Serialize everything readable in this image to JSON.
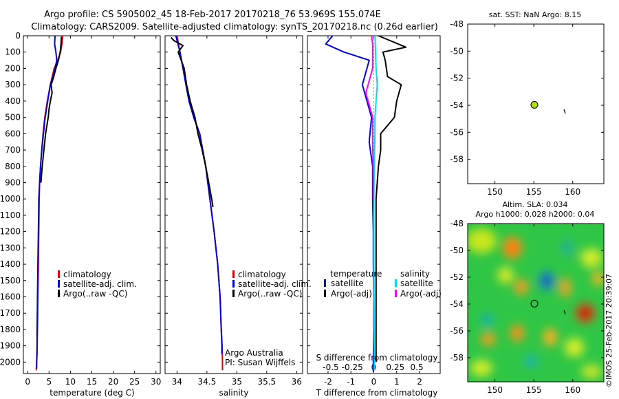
{
  "title": {
    "line1": "Argo profile: CS 5905002_45 18-Feb-2017 20170218_76 53.969S 155.074E",
    "line2": "Climatology: CARS2009. Satellite-adjusted climatology: synTS_20170218.nc (0.26d earlier)"
  },
  "colors": {
    "climatology": "#e00000",
    "satellite": "#0000e0",
    "argo": "#000000",
    "sal_satellite": "#00e0e0",
    "sal_argo": "#ff00ff",
    "dot": "#b4e000"
  },
  "legends": {
    "clim": "climatology",
    "sat": "satellite-adj. clim.",
    "argo": "Argo(..raw -QC)",
    "diff_temp_header": "temperature",
    "diff_sal_header": "salinity",
    "diff_sat": "satellite",
    "diff_argo": "Argo(-adj)"
  },
  "annotations": {
    "argo_australia": "Argo Australia",
    "pi": "PI: Susan Wijffels",
    "s_diff_label": "S difference from climatology",
    "imos_stamp": "©IMOS 25-Feb-2017 20:39:07"
  },
  "map1": {
    "title": "sat. SST: NaN Argo: 8.15"
  },
  "map2": {
    "title1": "Altim. SLA: 0.034",
    "title2": "Argo h1000: 0.028 h2000: 0.04"
  },
  "chart_data": [
    {
      "type": "line",
      "name": "temperature-profile",
      "xlabel": "temperature (deg C)",
      "ylabel": "",
      "xlim": [
        -1,
        31
      ],
      "ylim": [
        2070,
        0
      ],
      "xticks": [
        0,
        5,
        10,
        15,
        20,
        25,
        30
      ],
      "yticks": [
        0,
        100,
        200,
        300,
        400,
        500,
        600,
        700,
        800,
        900,
        1000,
        1100,
        1200,
        1300,
        1400,
        1500,
        1600,
        1700,
        1800,
        1900,
        2000
      ],
      "series": [
        {
          "name": "climatology",
          "x": [
            8.2,
            8.0,
            7.7,
            7.0,
            6.2,
            5.3,
            4.6,
            4.0,
            3.6,
            3.3,
            3.0,
            2.8,
            2.7,
            2.6,
            2.5,
            2.4,
            2.3,
            2.2,
            2.2,
            2.1,
            2.0
          ],
          "y": [
            0,
            50,
            100,
            150,
            200,
            300,
            400,
            500,
            600,
            700,
            800,
            900,
            1000,
            1200,
            1400,
            1600,
            1800,
            1900,
            1950,
            2000,
            2050
          ]
        },
        {
          "name": "satellite-adj. clim.",
          "x": [
            6.4,
            6.3,
            6.6,
            6.8,
            6.4,
            5.9,
            5.3,
            4.7,
            4.1,
            3.7,
            3.3,
            3.0,
            2.8,
            2.6,
            2.5,
            2.4,
            2.3,
            2.2,
            2.2,
            2.1,
            2.1
          ],
          "y": [
            0,
            50,
            100,
            150,
            200,
            250,
            300,
            400,
            500,
            600,
            700,
            800,
            900,
            1000,
            1200,
            1400,
            1600,
            1800,
            1900,
            2000,
            2040
          ]
        },
        {
          "name": "Argo(..raw -QC)",
          "x": [
            7.9,
            7.8,
            7.6,
            7.2,
            6.6,
            6.1,
            5.5,
            5.7,
            5.3,
            5.0,
            4.8,
            4.2,
            3.8,
            3.4,
            3.1
          ],
          "y": [
            5,
            50,
            100,
            150,
            200,
            250,
            300,
            350,
            400,
            450,
            500,
            600,
            700,
            800,
            900
          ]
        }
      ],
      "legend": [
        "climatology",
        "satellite-adj. clim.",
        "Argo(..raw -QC)"
      ]
    },
    {
      "type": "line",
      "name": "salinity-profile",
      "xlabel": "salinity",
      "ylabel": "",
      "xlim": [
        33.8,
        36.1
      ],
      "ylim": [
        2070,
        0
      ],
      "xticks": [
        34,
        34.5,
        35,
        35.5,
        36
      ],
      "series": [
        {
          "name": "climatology",
          "x": [
            34.0,
            34.05,
            34.1,
            34.15,
            34.2,
            34.28,
            34.38,
            34.48,
            34.55,
            34.62,
            34.68,
            34.72,
            34.74,
            34.755,
            34.76,
            34.76
          ],
          "y": [
            0,
            100,
            200,
            300,
            400,
            500,
            600,
            800,
            1000,
            1200,
            1400,
            1600,
            1800,
            1900,
            2000,
            2050
          ]
        },
        {
          "name": "satellite-adj. clim.",
          "x": [
            33.98,
            34.05,
            34.1,
            34.15,
            34.2,
            34.28,
            34.38,
            34.48,
            34.55,
            34.62,
            34.68,
            34.72,
            34.74,
            34.75,
            34.75
          ],
          "y": [
            0,
            100,
            200,
            300,
            400,
            500,
            600,
            800,
            1000,
            1200,
            1400,
            1600,
            1800,
            1900,
            1950
          ]
        },
        {
          "name": "Argo(..raw -QC)",
          "x": [
            33.9,
            33.95,
            34.1,
            34.02,
            34.12,
            34.16,
            34.22,
            34.3,
            34.35,
            34.42,
            34.48,
            34.53,
            34.58,
            34.6
          ],
          "y": [
            10,
            30,
            60,
            100,
            200,
            300,
            400,
            500,
            600,
            700,
            800,
            900,
            1000,
            1050
          ]
        }
      ],
      "legend": [
        "climatology",
        "satellite-adj. clim.",
        "Argo(..raw -QC)"
      ]
    },
    {
      "type": "line",
      "name": "difference-profile",
      "xlabel": "T difference from climatology",
      "ylabel": "",
      "xlim": [
        -2.9,
        2.9
      ],
      "ylim": [
        2070,
        0
      ],
      "xticks": [
        -2,
        -1,
        0,
        1,
        2
      ],
      "top_xticks": [
        -0.5,
        -0.25,
        0,
        0.25,
        0.5
      ],
      "series": [
        {
          "name": "temperature satellite",
          "x": [
            -1.8,
            -2.1,
            -1.3,
            -0.2,
            -0.5,
            -0.1,
            -0.2,
            -0.05,
            -0.05,
            -0.02,
            -0.02,
            0.0,
            0.0,
            -0.02,
            -0.02
          ],
          "y": [
            0,
            50,
            100,
            150,
            300,
            500,
            650,
            800,
            1000,
            1200,
            1400,
            1600,
            1800,
            2000,
            2060
          ]
        },
        {
          "name": "temperature Argo(-adj)",
          "x": [
            0.2,
            1.4,
            0.4,
            0.5,
            0.6,
            1.2,
            1.0,
            0.9,
            0.3,
            0.3,
            0.2,
            0.15,
            0.1,
            0.1,
            0.1
          ],
          "y": [
            0,
            70,
            100,
            150,
            250,
            300,
            400,
            500,
            600,
            700,
            800,
            900,
            1000,
            1100,
            2000
          ]
        },
        {
          "name": "salinity satellite",
          "x": [
            0.05,
            0.1,
            0.15,
            0.1,
            0.05,
            0.05,
            0.02,
            0.0,
            0.0,
            0.02,
            0.02
          ],
          "y": [
            0,
            200,
            300,
            400,
            500,
            600,
            800,
            1000,
            1400,
            1800,
            2050
          ]
        },
        {
          "name": "salinity Argo(-adj)",
          "x": [
            -0.1,
            -0.05,
            -0.05,
            -0.35,
            -0.05,
            -0.05,
            -0.03,
            -0.02,
            -0.02
          ],
          "y": [
            0,
            50,
            200,
            350,
            500,
            650,
            800,
            900,
            1000
          ]
        }
      ],
      "legend": [
        "satellite",
        "Argo(-adj)"
      ]
    },
    {
      "type": "scatter",
      "name": "sst-map",
      "xlim": [
        146.5,
        164
      ],
      "ylim": [
        -59.8,
        -48
      ],
      "xticks": [
        150,
        155,
        160
      ],
      "yticks": [
        -58,
        -56,
        -54,
        -52,
        -50,
        -48
      ],
      "points": [
        {
          "x": 155.074,
          "y": -53.969
        }
      ]
    },
    {
      "type": "heatmap",
      "name": "sla-map",
      "xlim": [
        146.5,
        164
      ],
      "ylim": [
        -59.8,
        -48
      ],
      "xticks": [
        150,
        155,
        160
      ],
      "yticks": [
        -58,
        -56,
        -54,
        -52,
        -50,
        -48
      ],
      "points": [
        {
          "x": 155.074,
          "y": -53.969
        }
      ]
    }
  ]
}
